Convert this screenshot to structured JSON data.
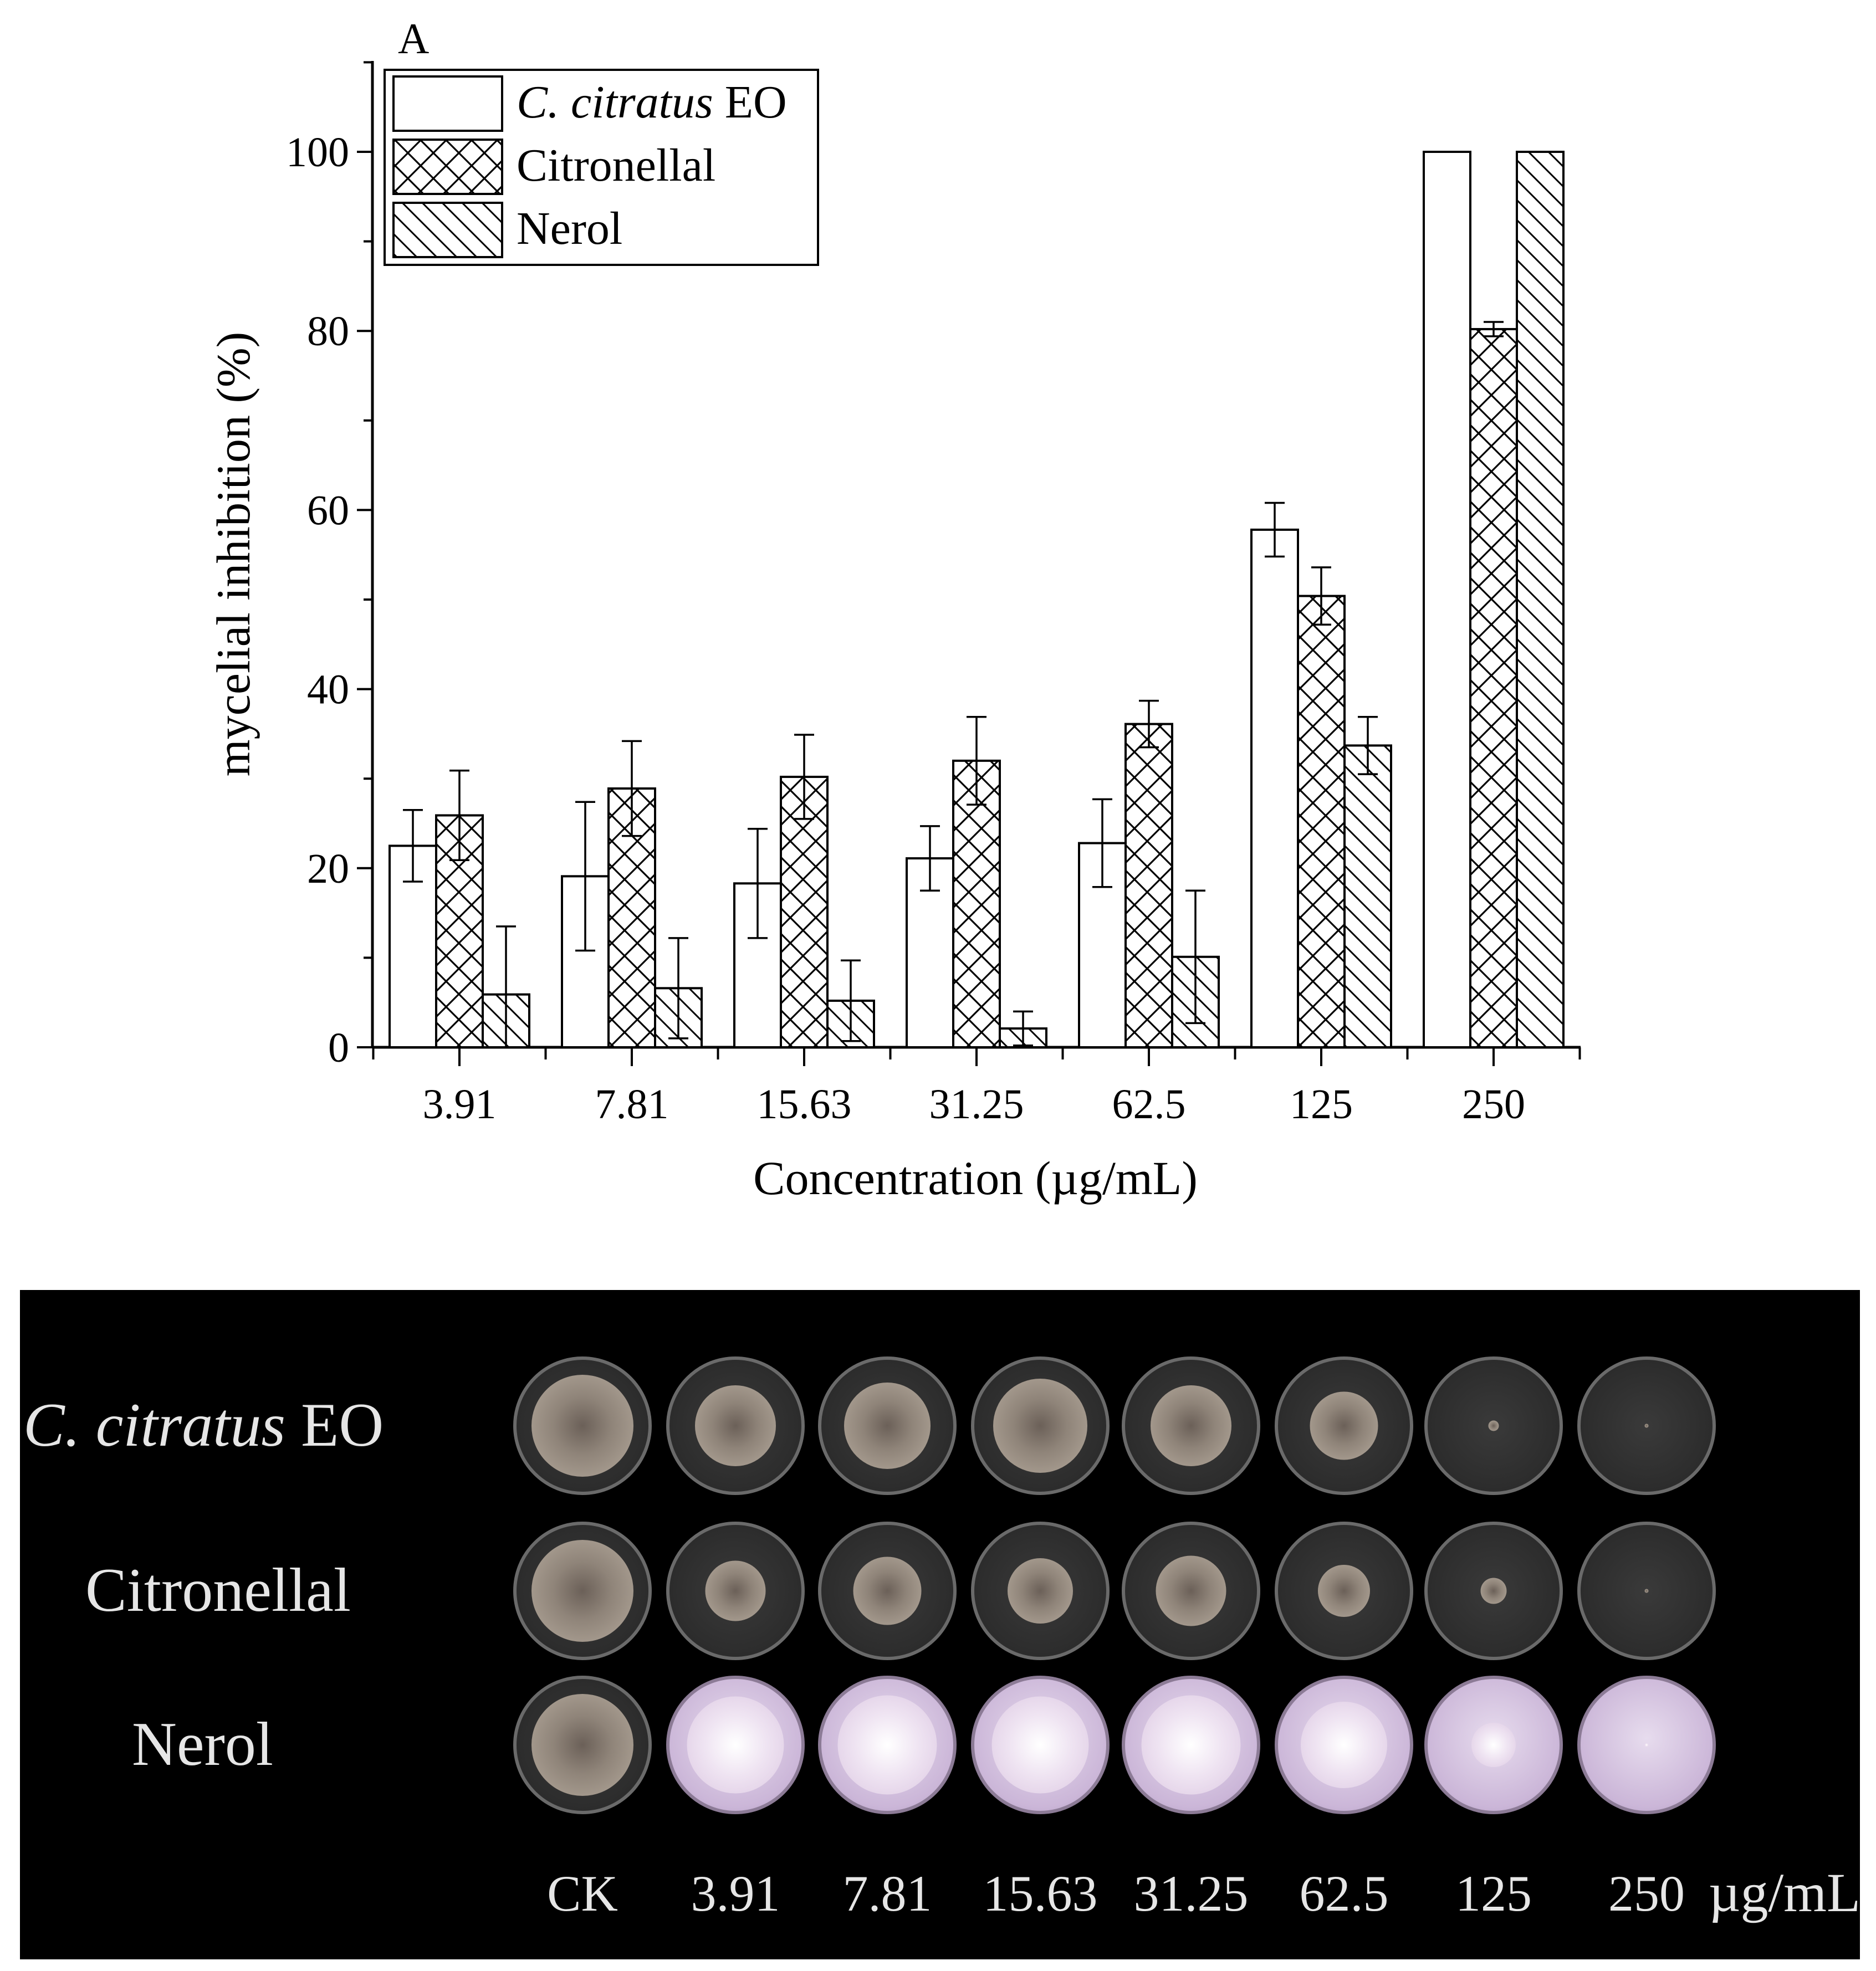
{
  "panel_letter": "A",
  "chart_data": {
    "type": "bar",
    "title": "",
    "xlabel": "Concentration (µg/mL)",
    "ylabel": "mycelial inhibition (%)",
    "ylim": [
      0,
      110
    ],
    "yticks": [
      0,
      20,
      40,
      60,
      80,
      100
    ],
    "categories": [
      "3.91",
      "7.81",
      "15.63",
      "31.25",
      "62.5",
      "125",
      "250"
    ],
    "legend_position": "top-left",
    "series": [
      {
        "name": "C. citratus EO",
        "name_italic": "C. citratus",
        "name_rest": "EO",
        "pattern": "none",
        "values": [
          22.5,
          19.1,
          18.3,
          21.1,
          22.8,
          57.8,
          100
        ],
        "errors": [
          4.0,
          8.3,
          6.1,
          3.6,
          4.9,
          3.0,
          null
        ]
      },
      {
        "name": "Citronellal",
        "pattern": "crosshatch",
        "values": [
          25.9,
          28.9,
          30.2,
          32.0,
          36.1,
          50.4,
          80.2
        ],
        "errors": [
          5.0,
          5.3,
          4.7,
          4.9,
          2.6,
          3.2,
          0.8
        ]
      },
      {
        "name": "Nerol",
        "pattern": "diagonal",
        "values": [
          5.9,
          6.6,
          5.2,
          2.1,
          10.1,
          33.7,
          100
        ],
        "errors": [
          7.6,
          5.6,
          4.5,
          1.9,
          7.4,
          3.2,
          null
        ]
      }
    ]
  },
  "photo_panel": {
    "rows": [
      {
        "label_italic": "C. citratus",
        "label_rest": "EO",
        "theme": "dark",
        "colony_sizes": [
          0.78,
          0.62,
          0.66,
          0.72,
          0.62,
          0.52,
          0.08,
          0.03
        ]
      },
      {
        "label": "Citronellal",
        "theme": "dark",
        "colony_sizes": [
          0.78,
          0.46,
          0.52,
          0.5,
          0.54,
          0.4,
          0.2,
          0.03
        ]
      },
      {
        "label": "Nerol",
        "theme": "pink",
        "colony_sizes": [
          0.78,
          0.74,
          0.76,
          0.74,
          0.76,
          0.66,
          0.34,
          0.03
        ]
      }
    ],
    "concentration_labels": [
      "CK",
      "3.91",
      "7.81",
      "15.63",
      "31.25",
      "62.5",
      "125",
      "250"
    ],
    "unit_label": "µg/mL"
  }
}
